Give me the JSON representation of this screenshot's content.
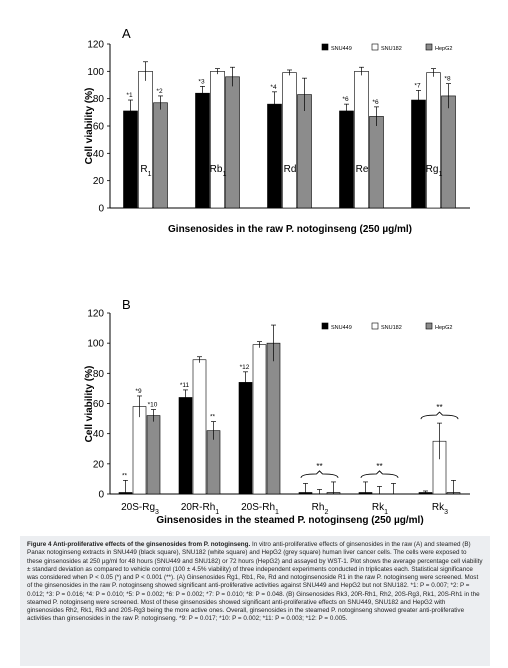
{
  "figure": {
    "caption_title": "Figure 4 Anti-proliferative effects of the ginsenosides from P. notoginseng.",
    "caption_body": "In vitro anti-proliferative effects of ginsenosides in the raw (A) and steamed (B) Panax notoginseng extracts in SNU449 (black square), SNU182 (white square) and HepG2 (grey square) human liver cancer cells. The cells were exposed to these ginsenosides at 250 µg/ml for 48 hours (SNU449 and SNU182) or 72 hours (HepG2) and assayed by WST-1. Plot shows the average percentage cell viability ± standard deviation as compared to vehicle control (100 ± 4.5% viability) of three independent experiments conducted in triplicates each. Statistical significance was considered when P < 0.05 (*) and P < 0.001 (**). (A) Ginsenosides Rg1, Rb1, Re, Rd and notoginsenoside R1 in the raw P. notoginseng were screened. Most of the ginsenosides in the raw P. notoginseng showed significant anti-proliferative activities against SNU449 and HepG2 but not SNU182. *1: P = 0.007; *2: P = 0.012; *3: P = 0.016; *4: P = 0.010; *5: P = 0.002; *6: P = 0.002; *7: P = 0.010; *8: P = 0.048. (B) Ginsenosides Rk3, 20R-Rh1, Rh2, 20S-Rg3, Rk1, 20S-Rh1 in the steamed P. notoginseng were screened. Most of these ginsenosides showed significant anti-proliferative effects on SNU449, SNU182 and HepG2 with ginsenosides Rh2, Rk1, Rk3 and 20S-Rg3 being the more active ones. Overall, ginsenosides in the steamed P. notoginseng showed greater anti-proliferative activities than ginsenosides in the raw P. notoginseng. *9: P = 0.017; *10: P = 0.002; *11: P = 0.003; *12: P = 0.005."
  },
  "colors": {
    "snu449": "#000000",
    "snu182": "#ffffff",
    "hepg2": "#8c8c8c"
  },
  "chart_data": [
    {
      "type": "bar",
      "panel_label": "A",
      "xlabel": "Ginsenosides in the raw P. notoginseng (250 µg/ml)",
      "ylabel": "Cell viability (%)",
      "ylim": [
        0,
        120
      ],
      "yticks": [
        0,
        20,
        40,
        60,
        80,
        100,
        120
      ],
      "grid": false,
      "legend_position": "top-right",
      "categories": [
        "R1",
        "Rb1",
        "Rd",
        "Re",
        "Rg1"
      ],
      "series": [
        {
          "name": "SNU449",
          "values": [
            71,
            84,
            76,
            71,
            79
          ],
          "errors": [
            8,
            5,
            9,
            5,
            7
          ],
          "labels": [
            "*1",
            "*3",
            "*4",
            "*6",
            "*7"
          ]
        },
        {
          "name": "SNU182",
          "values": [
            100,
            100,
            99,
            100,
            99
          ],
          "errors": [
            7,
            2,
            2,
            3,
            3
          ],
          "labels": [
            "",
            "",
            "",
            "",
            ""
          ]
        },
        {
          "name": "HepG2",
          "values": [
            77,
            96,
            83,
            67,
            82
          ],
          "errors": [
            5,
            7,
            12,
            7,
            9
          ],
          "labels": [
            "*2",
            "",
            "",
            "*6",
            "*8"
          ]
        }
      ]
    },
    {
      "type": "bar",
      "panel_label": "B",
      "xlabel": "Ginsenosides in the steamed P. notoginseng (250 µg/ml)",
      "ylabel": "Cell viability (%)",
      "ylim": [
        0,
        120
      ],
      "yticks": [
        0,
        20,
        40,
        60,
        80,
        100,
        120
      ],
      "grid": false,
      "legend_position": "top-right",
      "categories": [
        "20S-Rg3",
        "20R-Rh1",
        "20S-Rh1",
        "Rh2",
        "Rk1",
        "Rk3"
      ],
      "series": [
        {
          "name": "SNU449",
          "values": [
            1,
            64,
            74,
            1,
            1,
            1
          ],
          "errors": [
            8,
            5,
            7,
            6,
            7,
            1
          ],
          "labels": [
            "**",
            "*11",
            "*12",
            "",
            "",
            ""
          ]
        },
        {
          "name": "SNU182",
          "values": [
            58,
            89,
            99,
            0,
            0,
            35
          ],
          "errors": [
            7,
            2,
            2,
            3,
            5,
            12
          ],
          "labels": [
            "*9",
            "",
            "",
            "",
            "",
            ""
          ]
        },
        {
          "name": "HepG2",
          "values": [
            52,
            42,
            100,
            1,
            0,
            1
          ],
          "errors": [
            4,
            6,
            12,
            7,
            7,
            8
          ],
          "labels": [
            "*10",
            "**",
            "",
            "",
            "",
            ""
          ]
        }
      ],
      "group_annotations": [
        "",
        "",
        "",
        "**",
        "**",
        "**"
      ]
    }
  ]
}
